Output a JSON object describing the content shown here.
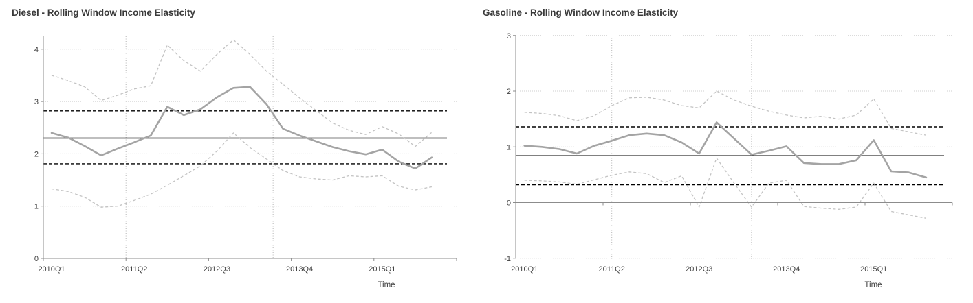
{
  "colors": {
    "estimate_line": "#a4a4a4",
    "ci_band_line": "#c3c3c3",
    "reference_line": "#000000",
    "gridline": "#cfcfcf",
    "axis_line": "#8c8c8c",
    "text": "#3f3f3f"
  },
  "chart_data": [
    {
      "type": "line",
      "title": "Diesel - Rolling Window Income Elasticity",
      "xlabel": "Time",
      "legend_position": "none",
      "grid": "horizontal-dotted",
      "categories": [
        "2010Q1",
        "2010Q2",
        "2010Q3",
        "2010Q4",
        "2011Q1",
        "2011Q2",
        "2011Q3",
        "2011Q4",
        "2012Q1",
        "2012Q2",
        "2012Q3",
        "2012Q4",
        "2013Q1",
        "2013Q2",
        "2013Q3",
        "2013Q4",
        "2014Q1",
        "2014Q2",
        "2014Q3",
        "2014Q4",
        "2015Q1",
        "2015Q2",
        "2015Q3",
        "2015Q4"
      ],
      "x_axis_tick_labels": [
        "2010Q1",
        "2011Q2",
        "2012Q3",
        "2013Q4",
        "2015Q1"
      ],
      "x_axis_tick_indices": [
        0,
        5,
        10,
        15,
        20
      ],
      "ylim": [
        0,
        4.25
      ],
      "yticks": [
        0,
        1,
        2,
        3,
        4
      ],
      "axis_cross": 0,
      "series": [
        {
          "name": "Rolling window estimate",
          "role": "estimate",
          "values": [
            2.4,
            2.31,
            2.15,
            1.97,
            2.1,
            2.22,
            2.35,
            2.9,
            2.74,
            2.85,
            3.08,
            3.26,
            3.28,
            2.95,
            2.48,
            2.35,
            2.24,
            2.13,
            2.05,
            1.99,
            2.08,
            1.85,
            1.72,
            1.93
          ]
        },
        {
          "name": "Upper confidence band",
          "role": "ci",
          "values": [
            3.5,
            3.4,
            3.28,
            3.02,
            3.12,
            3.24,
            3.3,
            4.08,
            3.78,
            3.58,
            3.9,
            4.18,
            3.9,
            3.58,
            3.33,
            3.07,
            2.83,
            2.59,
            2.45,
            2.37,
            2.52,
            2.38,
            2.14,
            2.41
          ]
        },
        {
          "name": "Lower confidence band",
          "role": "ci",
          "values": [
            1.33,
            1.28,
            1.17,
            0.98,
            1.0,
            1.11,
            1.23,
            1.4,
            1.58,
            1.77,
            2.05,
            2.4,
            2.12,
            1.9,
            1.68,
            1.56,
            1.52,
            1.5,
            1.58,
            1.56,
            1.58,
            1.38,
            1.31,
            1.37
          ]
        }
      ],
      "reference_lines": {
        "full_sample_estimate": 2.3,
        "upper_dashed": 2.82,
        "lower_dashed": 1.81
      },
      "vertical_marker_indices": [
        4.5,
        13.4
      ]
    },
    {
      "type": "line",
      "title": "Gasoline - Rolling Window Income Elasticity",
      "xlabel": "Time",
      "legend_position": "none",
      "grid": "horizontal-dotted",
      "categories": [
        "2010Q1",
        "2010Q2",
        "2010Q3",
        "2010Q4",
        "2011Q1",
        "2011Q2",
        "2011Q3",
        "2011Q4",
        "2012Q1",
        "2012Q2",
        "2012Q3",
        "2012Q4",
        "2013Q1",
        "2013Q2",
        "2013Q3",
        "2013Q4",
        "2014Q1",
        "2014Q2",
        "2014Q3",
        "2014Q4",
        "2015Q1",
        "2015Q2",
        "2015Q3",
        "2015Q4"
      ],
      "x_axis_tick_labels": [
        "2010Q1",
        "2011Q2",
        "2012Q3",
        "2013Q4",
        "2015Q1"
      ],
      "x_axis_tick_indices": [
        0,
        5,
        10,
        15,
        20
      ],
      "ylim": [
        -1,
        3
      ],
      "yticks": [
        -1,
        0,
        1,
        2,
        3
      ],
      "axis_cross": 0,
      "series": [
        {
          "name": "Rolling window estimate",
          "role": "estimate",
          "values": [
            1.02,
            1.0,
            0.96,
            0.88,
            1.02,
            1.11,
            1.21,
            1.24,
            1.21,
            1.08,
            0.88,
            1.44,
            1.15,
            0.86,
            0.93,
            1.01,
            0.71,
            0.69,
            0.69,
            0.76,
            1.12,
            0.56,
            0.54,
            0.45
          ]
        },
        {
          "name": "Upper confidence band",
          "role": "ci",
          "values": [
            1.62,
            1.6,
            1.56,
            1.47,
            1.56,
            1.74,
            1.88,
            1.89,
            1.84,
            1.74,
            1.7,
            2.0,
            1.84,
            1.73,
            1.64,
            1.57,
            1.52,
            1.55,
            1.5,
            1.57,
            1.86,
            1.33,
            1.27,
            1.21
          ]
        },
        {
          "name": "Lower confidence band",
          "role": "ci",
          "values": [
            0.4,
            0.39,
            0.37,
            0.33,
            0.41,
            0.49,
            0.55,
            0.52,
            0.36,
            0.48,
            -0.08,
            0.8,
            0.35,
            -0.08,
            0.35,
            0.4,
            -0.07,
            -0.1,
            -0.12,
            -0.08,
            0.35,
            -0.16,
            -0.22,
            -0.28
          ]
        }
      ],
      "reference_lines": {
        "full_sample_estimate": 0.84,
        "upper_dashed": 1.36,
        "lower_dashed": 0.32
      },
      "vertical_marker_indices": [
        5.0,
        13.0
      ]
    }
  ]
}
